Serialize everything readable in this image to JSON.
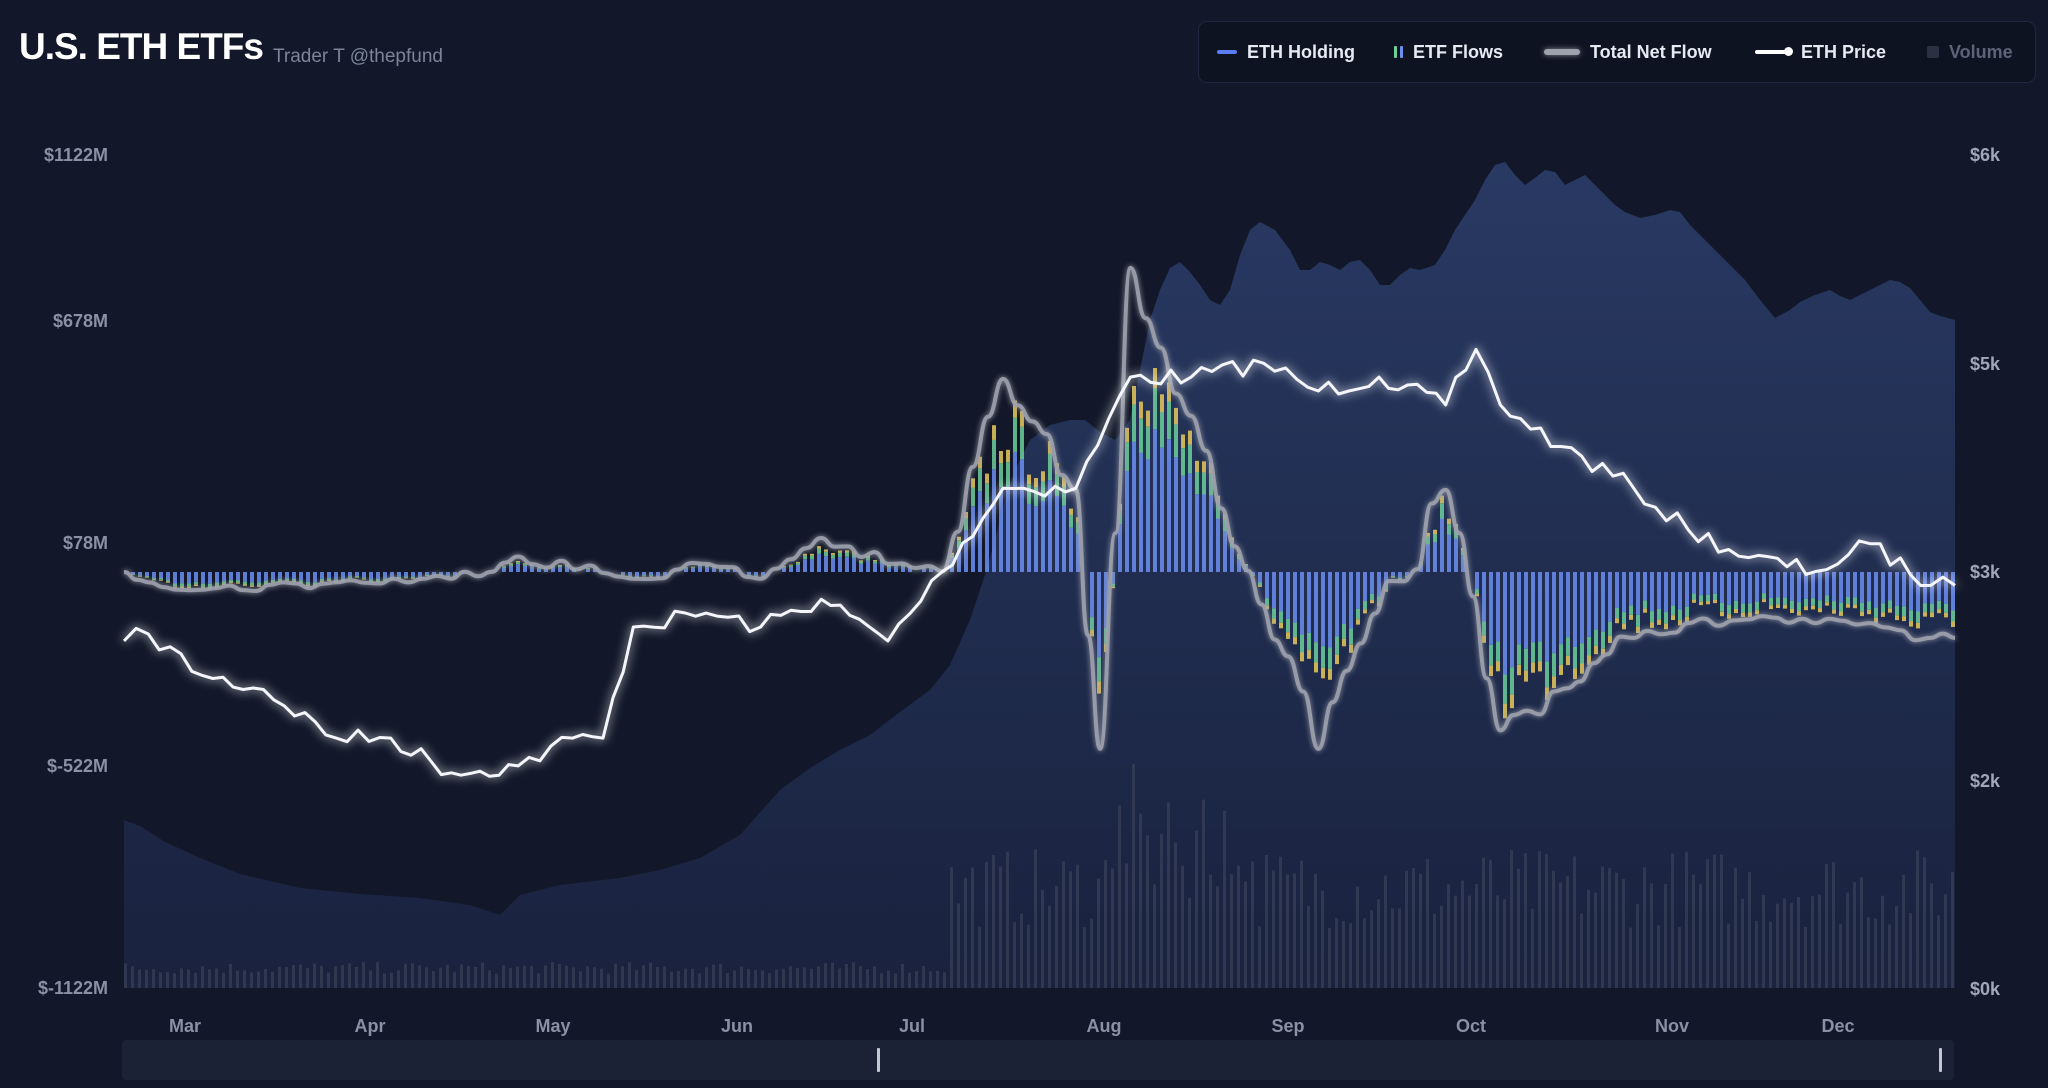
{
  "header": {
    "title": "U.S. ETH ETFs",
    "subtitle": "Trader T @thepfund"
  },
  "legend": [
    {
      "label": "ETH Holding",
      "color": "#5b7cf5",
      "icon": "line-swatch",
      "active": true
    },
    {
      "label": "ETF Flows",
      "colors": [
        "#6c8ef0",
        "#6ccf9a"
      ],
      "icon": "bars-swatch",
      "active": true
    },
    {
      "label": "Total Net Flow",
      "color": "#9ea2ad",
      "icon": "thick-line-swatch",
      "active": true
    },
    {
      "label": "ETH Price",
      "color": "#ffffff",
      "icon": "dot-line-swatch",
      "active": true
    },
    {
      "label": "Volume",
      "color": "#2b3142",
      "icon": "square-swatch",
      "active": false
    }
  ],
  "axes": {
    "left_ticks": [
      "$1122M",
      "$678M",
      "$78M",
      "$-522M",
      "$-1122M"
    ],
    "right_ticks": [
      "$6k",
      "$5k",
      "$3k",
      "$2k",
      "$0k"
    ],
    "months": [
      "Mar",
      "Apr",
      "May",
      "Jun",
      "Jul",
      "Aug",
      "Sep",
      "Oct",
      "Nov",
      "Dec"
    ]
  },
  "colors": {
    "background": "#121829",
    "holding_area": "#26365e",
    "flow_blue": "#6c8ef0",
    "flow_green": "#6ccf9a",
    "flow_yellow": "#e8c95a",
    "net_flow_line": "#9ea2ad",
    "price_line": "#ffffff",
    "volume": "#2b3142"
  },
  "chart_data": {
    "type": "line",
    "x_start": "Feb 25",
    "x_end": "Dec 24",
    "left_axis_range": [
      -1122,
      1122
    ],
    "right_axis_range": [
      0,
      6000
    ],
    "series": [
      {
        "name": "ETH Price",
        "axis": "right",
        "x": [
          "Feb 25",
          "Mar 1",
          "Mar 10",
          "Mar 20",
          "Apr 1",
          "Apr 10",
          "Apr 20",
          "May 1",
          "May 10",
          "May 15",
          "May 20",
          "Jun 1",
          "Jun 10",
          "Jun 20",
          "Jul 1",
          "Jul 10",
          "Jul 20",
          "Aug 1",
          "Aug 10",
          "Aug 20",
          "Sep 1",
          "Sep 10",
          "Sep 20",
          "Oct 1",
          "Oct 6",
          "Oct 10",
          "Oct 20",
          "Nov 1",
          "Nov 10",
          "Nov 20",
          "Dec 1",
          "Dec 10",
          "Dec 20",
          "Dec 24"
        ],
        "values": [
          2500,
          2550,
          2250,
          2150,
          1800,
          1800,
          1550,
          1600,
          1800,
          1800,
          2600,
          2700,
          2600,
          2800,
          2500,
          3000,
          3600,
          3600,
          4400,
          4400,
          4500,
          4300,
          4400,
          4200,
          4600,
          4200,
          3900,
          3600,
          3300,
          3100,
          3000,
          3200,
          2900,
          2900
        ]
      },
      {
        "name": "Total Net Flow",
        "axis": "left",
        "x": [
          "Feb 25",
          "Mar 10",
          "Apr 1",
          "Apr 20",
          "May 1",
          "May 20",
          "Jun 1",
          "Jun 10",
          "Jun 20",
          "Jul 1",
          "Jul 10",
          "Jul 20",
          "Aug 1",
          "Aug 5",
          "Aug 10",
          "Aug 20",
          "Aug 25",
          "Sep 5",
          "Sep 10",
          "Oct 1",
          "Oct 10",
          "Nov 1",
          "Nov 10",
          "Nov 20",
          "Dec 1",
          "Dec 10",
          "Dec 20",
          "Dec 24"
        ],
        "values": [
          78,
          30,
          50,
          60,
          120,
          60,
          100,
          60,
          170,
          100,
          80,
          600,
          300,
          -400,
          900,
          500,
          250,
          -150,
          -400,
          300,
          -350,
          -100,
          -60,
          -50,
          -60,
          -60,
          -100,
          -100
        ]
      }
    ]
  }
}
